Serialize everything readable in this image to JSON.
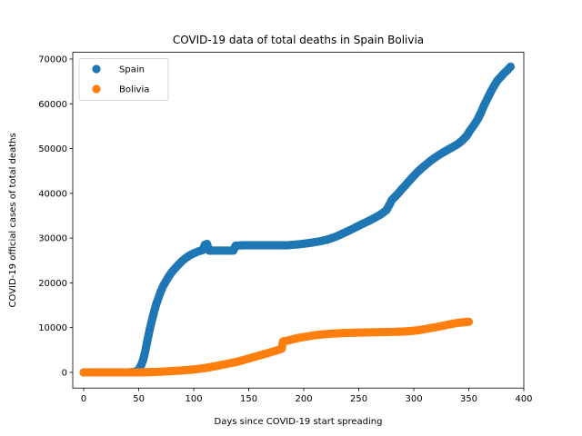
{
  "chart_data": {
    "type": "scatter",
    "title": "COVID-19 data of total deaths in Spain Bolivia",
    "xlabel": "Days since COVID-19 start spreading",
    "ylabel": "COVID-19 official cases of total deaths",
    "xlim": [
      -10,
      400
    ],
    "ylim": [
      -3500,
      71500
    ],
    "xticks": [
      0,
      50,
      100,
      150,
      200,
      250,
      300,
      350,
      400
    ],
    "yticks": [
      0,
      10000,
      20000,
      30000,
      40000,
      50000,
      60000,
      70000
    ],
    "grid": false,
    "legend_position": "top-left",
    "series": [
      {
        "name": "Spain",
        "color": "#1f77b4",
        "points": [
          [
            0,
            0
          ],
          [
            10,
            0
          ],
          [
            20,
            0
          ],
          [
            30,
            0
          ],
          [
            40,
            0
          ],
          [
            45,
            100
          ],
          [
            48,
            300
          ],
          [
            50,
            700
          ],
          [
            52,
            1500
          ],
          [
            54,
            2800
          ],
          [
            56,
            4800
          ],
          [
            58,
            7300
          ],
          [
            60,
            9600
          ],
          [
            62,
            11700
          ],
          [
            64,
            13600
          ],
          [
            66,
            15300
          ],
          [
            68,
            16700
          ],
          [
            70,
            18100
          ],
          [
            72,
            19200
          ],
          [
            75,
            20500
          ],
          [
            78,
            21700
          ],
          [
            81,
            22700
          ],
          [
            84,
            23500
          ],
          [
            87,
            24300
          ],
          [
            90,
            25000
          ],
          [
            93,
            25600
          ],
          [
            96,
            26100
          ],
          [
            100,
            26600
          ],
          [
            104,
            27000
          ],
          [
            108,
            27300
          ],
          [
            110,
            28500
          ],
          [
            112,
            28700
          ],
          [
            114,
            27200
          ],
          [
            118,
            27200
          ],
          [
            124,
            27200
          ],
          [
            130,
            27200
          ],
          [
            136,
            27200
          ],
          [
            138,
            28300
          ],
          [
            145,
            28400
          ],
          [
            155,
            28400
          ],
          [
            165,
            28400
          ],
          [
            175,
            28400
          ],
          [
            185,
            28400
          ],
          [
            195,
            28600
          ],
          [
            205,
            28900
          ],
          [
            215,
            29300
          ],
          [
            222,
            29700
          ],
          [
            230,
            30400
          ],
          [
            237,
            31200
          ],
          [
            244,
            32000
          ],
          [
            251,
            32900
          ],
          [
            258,
            33700
          ],
          [
            265,
            34600
          ],
          [
            270,
            35300
          ],
          [
            275,
            36200
          ],
          [
            278,
            37500
          ],
          [
            280,
            38500
          ],
          [
            284,
            39500
          ],
          [
            288,
            40600
          ],
          [
            292,
            41700
          ],
          [
            296,
            42800
          ],
          [
            300,
            43900
          ],
          [
            304,
            44900
          ],
          [
            308,
            45800
          ],
          [
            312,
            46600
          ],
          [
            316,
            47400
          ],
          [
            320,
            48100
          ],
          [
            325,
            48900
          ],
          [
            330,
            49600
          ],
          [
            335,
            50300
          ],
          [
            340,
            51000
          ],
          [
            344,
            51800
          ],
          [
            348,
            52800
          ],
          [
            351,
            54000
          ],
          [
            354,
            55000
          ],
          [
            358,
            56500
          ],
          [
            361,
            58000
          ],
          [
            364,
            59700
          ],
          [
            367,
            61200
          ],
          [
            370,
            62700
          ],
          [
            373,
            64000
          ],
          [
            376,
            65200
          ],
          [
            379,
            66000
          ],
          [
            382,
            66800
          ],
          [
            385,
            67500
          ],
          [
            388,
            68300
          ]
        ]
      },
      {
        "name": "Bolivia",
        "color": "#ff7f0e",
        "points": [
          [
            0,
            0
          ],
          [
            10,
            0
          ],
          [
            20,
            0
          ],
          [
            30,
            0
          ],
          [
            40,
            0
          ],
          [
            50,
            0
          ],
          [
            60,
            50
          ],
          [
            70,
            150
          ],
          [
            80,
            300
          ],
          [
            90,
            450
          ],
          [
            100,
            650
          ],
          [
            110,
            950
          ],
          [
            120,
            1400
          ],
          [
            130,
            1900
          ],
          [
            140,
            2400
          ],
          [
            150,
            3100
          ],
          [
            160,
            3800
          ],
          [
            170,
            4500
          ],
          [
            178,
            5100
          ],
          [
            180,
            5300
          ],
          [
            181,
            6900
          ],
          [
            185,
            7100
          ],
          [
            190,
            7400
          ],
          [
            195,
            7700
          ],
          [
            200,
            7900
          ],
          [
            205,
            8100
          ],
          [
            210,
            8300
          ],
          [
            215,
            8450
          ],
          [
            220,
            8550
          ],
          [
            225,
            8650
          ],
          [
            230,
            8720
          ],
          [
            235,
            8780
          ],
          [
            240,
            8820
          ],
          [
            245,
            8860
          ],
          [
            250,
            8890
          ],
          [
            255,
            8920
          ],
          [
            260,
            8950
          ],
          [
            265,
            8980
          ],
          [
            270,
            9000
          ],
          [
            275,
            9020
          ],
          [
            280,
            9050
          ],
          [
            285,
            9080
          ],
          [
            290,
            9120
          ],
          [
            295,
            9200
          ],
          [
            300,
            9300
          ],
          [
            305,
            9450
          ],
          [
            310,
            9650
          ],
          [
            315,
            9900
          ],
          [
            320,
            10100
          ],
          [
            325,
            10350
          ],
          [
            330,
            10600
          ],
          [
            335,
            10850
          ],
          [
            340,
            11050
          ],
          [
            345,
            11200
          ],
          [
            350,
            11300
          ]
        ]
      }
    ]
  }
}
